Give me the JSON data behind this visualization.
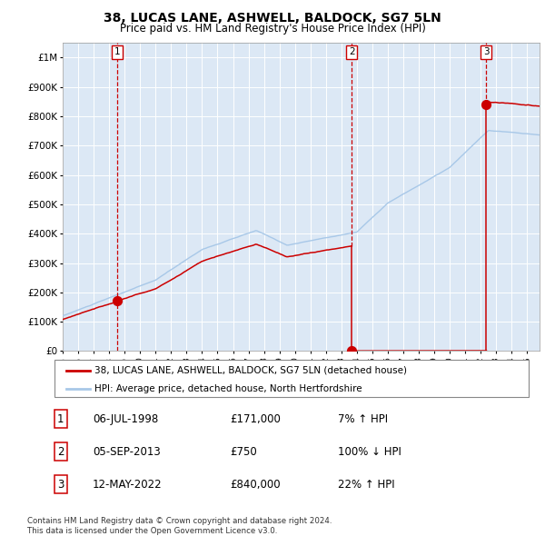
{
  "title": "38, LUCAS LANE, ASHWELL, BALDOCK, SG7 5LN",
  "subtitle": "Price paid vs. HM Land Registry's House Price Index (HPI)",
  "xlim": [
    1995.0,
    2025.8
  ],
  "ylim": [
    0,
    1050000
  ],
  "yticks": [
    0,
    100000,
    200000,
    300000,
    400000,
    500000,
    600000,
    700000,
    800000,
    900000,
    1000000
  ],
  "ytick_labels": [
    "£0",
    "£100K",
    "£200K",
    "£300K",
    "£400K",
    "£500K",
    "£600K",
    "£700K",
    "£800K",
    "£900K",
    "£1M"
  ],
  "hpi_color": "#a8c8e8",
  "price_color": "#cc0000",
  "transactions": [
    {
      "id": 1,
      "date_x": 1998.51,
      "price": 171000,
      "label": "1"
    },
    {
      "id": 2,
      "date_x": 2013.67,
      "price": 750,
      "label": "2"
    },
    {
      "id": 3,
      "date_x": 2022.36,
      "price": 840000,
      "label": "3"
    }
  ],
  "legend_entries": [
    "38, LUCAS LANE, ASHWELL, BALDOCK, SG7 5LN (detached house)",
    "HPI: Average price, detached house, North Hertfordshire"
  ],
  "table_rows": [
    {
      "num": "1",
      "date": "06-JUL-1998",
      "price": "£171,000",
      "change": "7% ↑ HPI"
    },
    {
      "num": "2",
      "date": "05-SEP-2013",
      "price": "£750",
      "change": "100% ↓ HPI"
    },
    {
      "num": "3",
      "date": "12-MAY-2022",
      "price": "£840,000",
      "change": "22% ↑ HPI"
    }
  ],
  "footnote": "Contains HM Land Registry data © Crown copyright and database right 2024.\nThis data is licensed under the Open Government Licence v3.0.",
  "plot_bg": "#dce8f5"
}
